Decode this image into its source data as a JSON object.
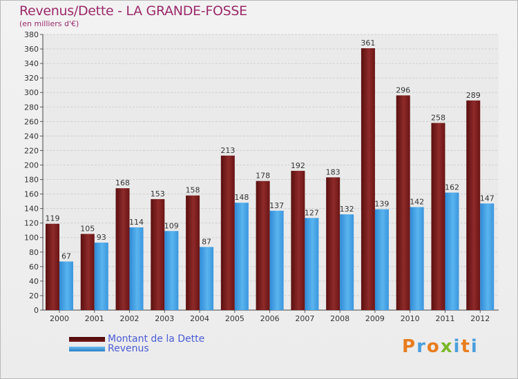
{
  "header": {
    "title": "Revenus/Dette - LA GRANDE-FOSSE",
    "subtitle": "(en milliers d'€)"
  },
  "legend": {
    "items": [
      {
        "label": "Montant de la Dette",
        "color": "#6b0f0f"
      },
      {
        "label": "Revenus",
        "color": "#4aa3e4"
      }
    ]
  },
  "logo": {
    "text": "Proxiti",
    "colors": [
      "#e87d1e",
      "#4a9fdc",
      "#e87d1e",
      "#7ab829",
      "#4a9fdc",
      "#e87d1e",
      "#4a9fdc"
    ]
  },
  "chart_data": {
    "type": "bar",
    "title": "Revenus/Dette - LA GRANDE-FOSSE",
    "ylabel": "(en milliers d'€)",
    "xlabel": "",
    "categories": [
      "2000",
      "2001",
      "2002",
      "2003",
      "2004",
      "2005",
      "2006",
      "2007",
      "2008",
      "2009",
      "2010",
      "2011",
      "2012"
    ],
    "series": [
      {
        "name": "Montant de la Dette",
        "color": "#8b2020",
        "values": [
          119,
          105,
          168,
          153,
          158,
          213,
          178,
          192,
          183,
          361,
          296,
          258,
          289
        ]
      },
      {
        "name": "Revenus",
        "color": "#4aa3e4",
        "values": [
          67,
          93,
          114,
          109,
          87,
          148,
          137,
          127,
          132,
          139,
          142,
          162,
          147
        ]
      }
    ],
    "ylim": [
      0,
      380
    ],
    "yticks": [
      0,
      20,
      40,
      60,
      80,
      100,
      120,
      140,
      160,
      180,
      200,
      220,
      240,
      260,
      280,
      300,
      320,
      340,
      360,
      380
    ],
    "grid": true,
    "legend_position": "bottom-left"
  }
}
